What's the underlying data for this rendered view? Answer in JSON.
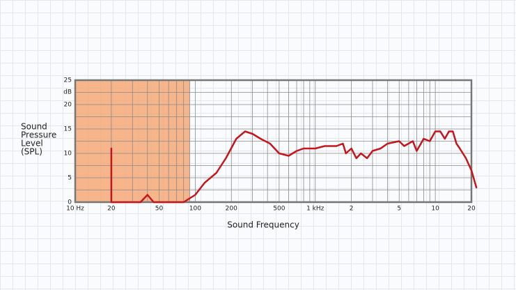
{
  "chart_data": {
    "type": "line",
    "xlabel": "Sound Frequency",
    "ylabel": [
      "Sound",
      "Pressure",
      "Level",
      "(SPL)"
    ],
    "yunit": "dB",
    "xscale": "log",
    "xlim": [
      10,
      20000
    ],
    "ylim": [
      0,
      25
    ],
    "xticks": [
      {
        "value": 10,
        "label": "10 Hz"
      },
      20,
      50,
      100,
      200,
      500,
      {
        "value": 1000,
        "label": "1 kHz"
      },
      {
        "value": 2000,
        "label": "2"
      },
      {
        "value": 5000,
        "label": "5"
      },
      {
        "value": 10000,
        "label": "10"
      },
      {
        "value": 20000,
        "label": "20"
      }
    ],
    "yticks": [
      0,
      5,
      10,
      15,
      20,
      25
    ],
    "xgrid": [
      10,
      20,
      30,
      40,
      50,
      60,
      70,
      80,
      90,
      100,
      200,
      300,
      400,
      500,
      600,
      700,
      800,
      900,
      1000,
      2000,
      3000,
      4000,
      5000,
      6000,
      7000,
      8000,
      9000,
      10000,
      20000
    ],
    "ygrid": [
      0,
      2.5,
      5,
      7.5,
      10,
      12.5,
      15,
      17.5,
      20,
      22.5,
      25
    ],
    "shaded_range": [
      10,
      90
    ],
    "shade_color": "#f4a877",
    "series": [
      {
        "color": "#c4161c",
        "x": [
          20,
          20,
          25,
          35,
          40,
          45,
          60,
          80,
          100,
          120,
          150,
          180,
          220,
          260,
          300,
          350,
          420,
          500,
          600,
          700,
          800,
          1000,
          1200,
          1500,
          1700,
          1800,
          2000,
          2200,
          2400,
          2700,
          3000,
          3500,
          4000,
          5000,
          5500,
          6500,
          7000,
          8000,
          9000,
          10000,
          11000,
          12000,
          13000,
          14000,
          15000,
          16000,
          18000,
          20000,
          22000
        ],
        "values": [
          11,
          0,
          0,
          0,
          1.5,
          0,
          0,
          0,
          1.5,
          4,
          6,
          9,
          13,
          14.5,
          14,
          13,
          12,
          10,
          9.5,
          10.5,
          11,
          11,
          11.5,
          11.5,
          12,
          10,
          11,
          9,
          10,
          9,
          10.5,
          11,
          12,
          12.5,
          11.5,
          12.5,
          10.5,
          13,
          12.5,
          14.5,
          14.5,
          13,
          14.5,
          14.5,
          12,
          11,
          9,
          6.5,
          3
        ]
      }
    ]
  }
}
